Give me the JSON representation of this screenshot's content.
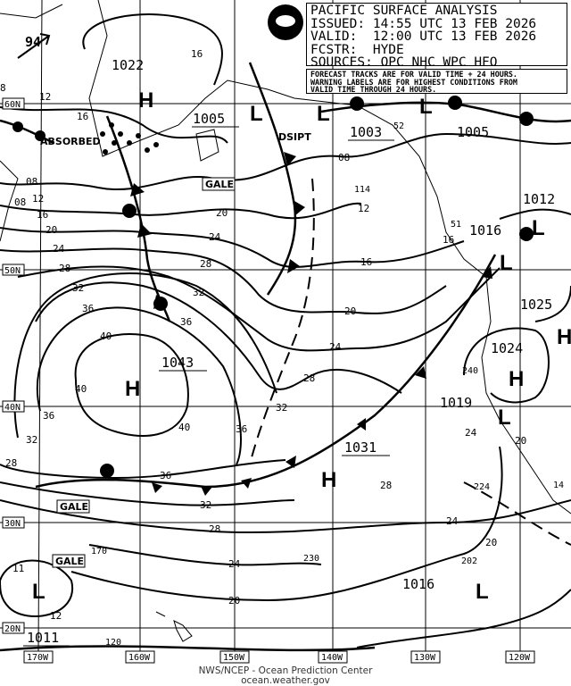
{
  "header": {
    "title": "PACIFIC SURFACE ANALYSIS",
    "issued": "ISSUED: 14:55 UTC 13 FEB 2026",
    "valid": "VALID:  12:00 UTC 13 FEB 2026",
    "forecaster": "FCSTR:  HYDE",
    "sources": "SOURCES: OPC NHC WPC HFO"
  },
  "notice": [
    "FORECAST TRACKS ARE FOR VALID TIME + 24 HOURS.",
    "WARNING LABELS ARE FOR HIGHEST CONDITIONS FROM",
    "VALID TIME THROUGH 24 HOURS."
  ],
  "logo": "NOAA",
  "credit": [
    "NWS/NCEP - Ocean Prediction Center",
    "ocean.weather.gov"
  ],
  "latitudes": [
    "60N",
    "50N",
    "40N",
    "30N",
    "20N"
  ],
  "longitudes": [
    "170W",
    "160W",
    "150W",
    "140W",
    "130W",
    "120W"
  ],
  "centers": [
    {
      "type": "H",
      "pressure": "1022"
    },
    {
      "type": "L",
      "pressure": "1005"
    },
    {
      "type": "L",
      "pressure": ""
    },
    {
      "type": "L",
      "pressure": "1003"
    },
    {
      "type": "L",
      "pressure": "1005"
    },
    {
      "type": "L",
      "pressure": "1012"
    },
    {
      "type": "L",
      "pressure": "1016"
    },
    {
      "type": "H",
      "pressure": "1025"
    },
    {
      "type": "H",
      "pressure": "1024"
    },
    {
      "type": "L",
      "pressure": "1019"
    },
    {
      "type": "H",
      "pressure": "1043"
    },
    {
      "type": "H",
      "pressure": "1031"
    },
    {
      "type": "L",
      "pressure": "1016"
    },
    {
      "type": "L",
      "pressure": "1011"
    }
  ],
  "annotations": {
    "absorbed": "ABSORBED",
    "dsipt": "DSIPT",
    "gale1": "GALE",
    "gale2": "GALE",
    "gale3": "GALE",
    "storm_speed": "94"
  },
  "isobar_labels": [
    "16",
    "12",
    "16",
    "08",
    "12",
    "16",
    "20",
    "24",
    "28",
    "32",
    "36",
    "40",
    "40",
    "36",
    "32",
    "28",
    "40",
    "36",
    "32",
    "28",
    "24",
    "20",
    "36",
    "32",
    "28",
    "24",
    "20",
    "16",
    "12",
    "08",
    "36",
    "32",
    "28",
    "24",
    "20",
    "24",
    "20",
    "24",
    "28",
    "20",
    "16",
    "114",
    "240",
    "224",
    "230",
    "202",
    "170",
    "11",
    "12",
    "120",
    "52",
    "51",
    "14",
    "8",
    "08"
  ]
}
